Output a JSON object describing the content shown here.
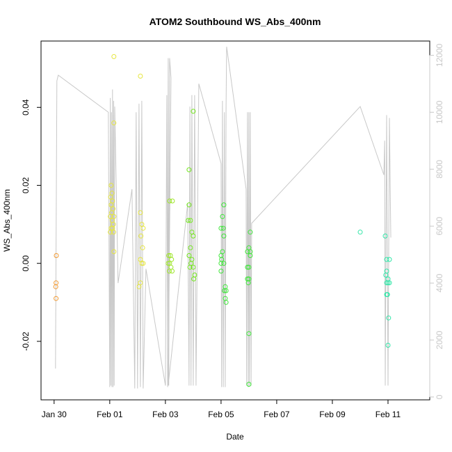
{
  "chart_data": {
    "type": "scatter",
    "title": "ATOM2 Southbound WS_Abs_400nm",
    "xlabel": "Date",
    "ylabel": "WS_Abs_400nm",
    "x_ticks": [
      "Jan 30",
      "Feb 01",
      "Feb 03",
      "Feb 05",
      "Feb 07",
      "Feb 09",
      "Feb 11"
    ],
    "xlim_days": [
      -1.47,
      12.5
    ],
    "ylim": [
      -0.035,
      0.057
    ],
    "y_ticks": [
      -0.02,
      0.0,
      0.02,
      0.04
    ],
    "y_tick_labels": [
      "-0.02",
      "0.00",
      "0.02",
      "0.04"
    ],
    "y2_ticks": [
      0,
      2000,
      4000,
      6000,
      8000,
      10000,
      12000
    ],
    "y2lim": [
      -100,
      12500
    ],
    "y2_axis_color": "#c8c8c8",
    "grid": false,
    "series": [
      {
        "color": "#f29a33",
        "points": [
          [
            -0.92,
            0.002
          ],
          [
            -0.93,
            -0.005
          ],
          [
            -0.94,
            -0.006
          ],
          [
            -0.93,
            -0.009
          ]
        ]
      },
      {
        "color": "#e6e640",
        "points": [
          [
            1.15,
            0.053
          ],
          [
            2.1,
            0.048
          ],
          [
            1.15,
            0.036
          ],
          [
            1.05,
            0.02
          ],
          [
            1.08,
            0.018
          ],
          [
            1.03,
            0.017
          ],
          [
            1.1,
            0.016
          ],
          [
            1.05,
            0.015
          ],
          [
            1.12,
            0.014
          ],
          [
            1.07,
            0.013
          ],
          [
            1.15,
            0.012
          ],
          [
            1.02,
            0.012
          ],
          [
            1.09,
            0.011
          ],
          [
            1.13,
            0.01
          ],
          [
            1.05,
            0.009
          ],
          [
            1.1,
            0.009
          ],
          [
            1.02,
            0.008
          ],
          [
            1.14,
            0.008
          ],
          [
            1.15,
            0.003
          ],
          [
            2.1,
            0.013
          ],
          [
            2.15,
            0.01
          ],
          [
            2.2,
            0.009
          ],
          [
            2.12,
            0.007
          ],
          [
            2.18,
            0.004
          ],
          [
            2.1,
            0.001
          ],
          [
            2.15,
            0.0
          ],
          [
            2.2,
            0.0
          ],
          [
            2.1,
            -0.005
          ],
          [
            2.05,
            -0.006
          ]
        ]
      },
      {
        "color": "#9fe62c",
        "points": [
          [
            3.15,
            0.016
          ],
          [
            3.25,
            0.016
          ],
          [
            3.12,
            0.002
          ],
          [
            3.18,
            0.002
          ],
          [
            3.22,
            0.001
          ],
          [
            3.1,
            0.0
          ],
          [
            3.15,
            0.0
          ],
          [
            3.2,
            -0.001
          ],
          [
            3.14,
            -0.002
          ],
          [
            3.24,
            -0.002
          ]
        ]
      },
      {
        "color": "#74e61f",
        "points": [
          [
            4.0,
            0.039
          ],
          [
            3.85,
            0.024
          ],
          [
            3.85,
            0.015
          ],
          [
            3.82,
            0.011
          ],
          [
            3.9,
            0.011
          ],
          [
            3.95,
            0.008
          ],
          [
            4.0,
            0.007
          ],
          [
            3.9,
            0.004
          ],
          [
            3.85,
            0.002
          ],
          [
            3.95,
            0.001
          ],
          [
            3.92,
            0.0
          ],
          [
            4.0,
            -0.001
          ],
          [
            3.88,
            -0.001
          ],
          [
            4.05,
            -0.003
          ],
          [
            4.02,
            -0.004
          ]
        ]
      },
      {
        "color": "#3fe63a",
        "points": [
          [
            5.1,
            0.015
          ],
          [
            5.05,
            0.012
          ],
          [
            5.0,
            0.009
          ],
          [
            5.08,
            0.009
          ],
          [
            5.1,
            0.007
          ],
          [
            5.05,
            0.003
          ],
          [
            5.0,
            0.002
          ],
          [
            5.02,
            0.001
          ],
          [
            5.0,
            0.0
          ],
          [
            5.1,
            0.0
          ],
          [
            5.0,
            -0.002
          ],
          [
            5.15,
            -0.006
          ],
          [
            5.12,
            -0.007
          ],
          [
            5.18,
            -0.007
          ],
          [
            5.15,
            -0.009
          ],
          [
            5.18,
            -0.01
          ],
          [
            6.05,
            0.008
          ],
          [
            6.0,
            0.004
          ],
          [
            6.05,
            0.003
          ],
          [
            5.95,
            0.003
          ],
          [
            6.05,
            0.002
          ],
          [
            5.95,
            -0.001
          ],
          [
            6.0,
            -0.001
          ],
          [
            5.95,
            -0.004
          ],
          [
            6.0,
            -0.004
          ],
          [
            5.98,
            -0.005
          ],
          [
            6.0,
            -0.018
          ],
          [
            6.0,
            -0.031
          ]
        ]
      },
      {
        "color": "#33e6a8",
        "points": [
          [
            10.0,
            0.008
          ],
          [
            10.9,
            0.007
          ],
          [
            10.95,
            0.001
          ],
          [
            11.05,
            0.001
          ],
          [
            10.95,
            -0.002
          ],
          [
            10.92,
            -0.003
          ],
          [
            11.0,
            -0.004
          ],
          [
            10.95,
            -0.005
          ],
          [
            11.05,
            -0.005
          ],
          [
            11.0,
            -0.005
          ],
          [
            10.98,
            -0.008
          ],
          [
            10.95,
            -0.008
          ],
          [
            11.02,
            -0.014
          ],
          [
            11.0,
            -0.021
          ]
        ]
      }
    ],
    "line_series": {
      "color": "#c8c8c8",
      "axis": "right",
      "points": [
        [
          -0.95,
          1000
        ],
        [
          -0.9,
          11100
        ],
        [
          -0.85,
          11300
        ],
        [
          0.95,
          10000
        ],
        [
          1.0,
          350
        ],
        [
          1.02,
          10500
        ],
        [
          1.04,
          400
        ],
        [
          1.06,
          10000
        ],
        [
          1.08,
          350
        ],
        [
          1.1,
          10800
        ],
        [
          1.12,
          350
        ],
        [
          1.14,
          10400
        ],
        [
          1.16,
          400
        ],
        [
          1.18,
          10200
        ],
        [
          1.3,
          4000
        ],
        [
          1.8,
          7300
        ],
        [
          1.9,
          300
        ],
        [
          1.95,
          10000
        ],
        [
          2.0,
          300
        ],
        [
          2.05,
          10300
        ],
        [
          2.1,
          350
        ],
        [
          2.15,
          10400
        ],
        [
          2.2,
          300
        ],
        [
          2.3,
          4500
        ],
        [
          3.0,
          400
        ],
        [
          3.05,
          10600
        ],
        [
          3.08,
          350
        ],
        [
          3.1,
          11900
        ],
        [
          3.12,
          400
        ],
        [
          3.15,
          11900
        ],
        [
          3.2,
          11200
        ],
        [
          3.1,
          400
        ],
        [
          3.8,
          6800
        ],
        [
          3.85,
          400
        ],
        [
          3.88,
          10200
        ],
        [
          3.92,
          400
        ],
        [
          3.95,
          10600
        ],
        [
          4.0,
          400
        ],
        [
          4.05,
          10600
        ],
        [
          4.1,
          400
        ],
        [
          4.2,
          11000
        ],
        [
          5.0,
          8200
        ],
        [
          5.02,
          350
        ],
        [
          5.05,
          10400
        ],
        [
          5.08,
          350
        ],
        [
          5.12,
          10000
        ],
        [
          5.15,
          350
        ],
        [
          5.18,
          10200
        ],
        [
          5.2,
          12300
        ],
        [
          5.9,
          7300
        ],
        [
          5.92,
          400
        ],
        [
          5.95,
          10000
        ],
        [
          5.98,
          350
        ],
        [
          6.0,
          10000
        ],
        [
          6.02,
          400
        ],
        [
          6.05,
          10000
        ],
        [
          6.08,
          400
        ],
        [
          6.1,
          6100
        ],
        [
          10.0,
          10200
        ],
        [
          10.85,
          7800
        ],
        [
          10.88,
          9000
        ],
        [
          10.9,
          400
        ],
        [
          10.95,
          9900
        ],
        [
          11.0,
          400
        ],
        [
          11.05,
          9800
        ],
        [
          11.1,
          5600
        ]
      ]
    }
  }
}
